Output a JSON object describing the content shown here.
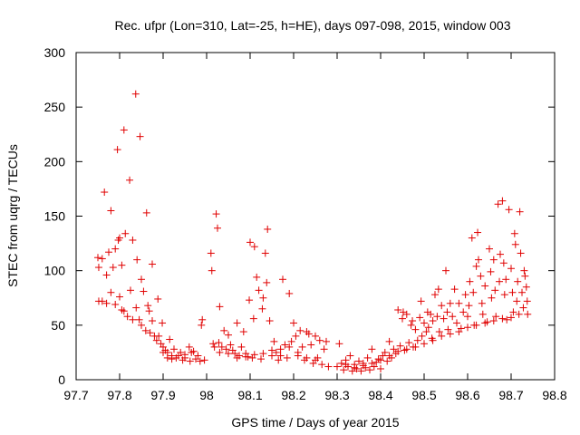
{
  "chart_data": {
    "type": "scatter",
    "title": "Rec. ufpr (Lon=310, Lat=-25, h=HE), days 097-098, 2015, window 003",
    "xlabel": "GPS time / Days of year 2015",
    "ylabel": "STEC from uqrg / TECUs",
    "xlim": [
      97.7,
      98.8
    ],
    "ylim": [
      0,
      300
    ],
    "xticks": [
      97.7,
      97.8,
      97.9,
      98.0,
      98.1,
      98.2,
      98.3,
      98.4,
      98.5,
      98.6,
      98.7,
      98.8
    ],
    "xtick_labels": [
      "97.7",
      "97.8",
      "97.9",
      "98",
      "98.1",
      "98.2",
      "98.3",
      "98.4",
      "98.5",
      "98.6",
      "98.7",
      "98.8"
    ],
    "yticks": [
      0,
      50,
      100,
      150,
      200,
      250,
      300
    ],
    "ytick_labels": [
      "0",
      "50",
      "100",
      "150",
      "200",
      "250",
      "300"
    ],
    "marker": "+",
    "color": "#e00000",
    "series": [
      {
        "name": "STEC",
        "points": [
          [
            97.75,
            112
          ],
          [
            97.752,
            103
          ],
          [
            97.76,
            111
          ],
          [
            97.765,
            172
          ],
          [
            97.77,
            96
          ],
          [
            97.775,
            117
          ],
          [
            97.78,
            155
          ],
          [
            97.785,
            103
          ],
          [
            97.79,
            120
          ],
          [
            97.795,
            211
          ],
          [
            97.797,
            128
          ],
          [
            97.8,
            130
          ],
          [
            97.805,
            105
          ],
          [
            97.81,
            229
          ],
          [
            97.813,
            134
          ],
          [
            97.823,
            183
          ],
          [
            97.83,
            128
          ],
          [
            97.837,
            262
          ],
          [
            97.84,
            110
          ],
          [
            97.847,
            223
          ],
          [
            97.85,
            92
          ],
          [
            97.862,
            153
          ],
          [
            97.875,
            106
          ],
          [
            97.752,
            72
          ],
          [
            97.76,
            72
          ],
          [
            97.77,
            70
          ],
          [
            97.78,
            80
          ],
          [
            97.79,
            69
          ],
          [
            97.8,
            76
          ],
          [
            97.805,
            64
          ],
          [
            97.81,
            63
          ],
          [
            97.818,
            58
          ],
          [
            97.825,
            82
          ],
          [
            97.83,
            55
          ],
          [
            97.838,
            66
          ],
          [
            97.845,
            55
          ],
          [
            97.85,
            50
          ],
          [
            97.855,
            81
          ],
          [
            97.86,
            45
          ],
          [
            97.865,
            68
          ],
          [
            97.868,
            63
          ],
          [
            97.87,
            43
          ],
          [
            97.875,
            54
          ],
          [
            97.88,
            40
          ],
          [
            97.885,
            36
          ],
          [
            97.888,
            74
          ],
          [
            97.89,
            40
          ],
          [
            97.895,
            33
          ],
          [
            97.898,
            52
          ],
          [
            97.9,
            30
          ],
          [
            97.905,
            27
          ],
          [
            97.91,
            25
          ],
          [
            97.915,
            37
          ],
          [
            97.92,
            22
          ],
          [
            97.925,
            28
          ],
          [
            97.93,
            20
          ],
          [
            97.94,
            25
          ],
          [
            97.945,
            18
          ],
          [
            97.95,
            23
          ],
          [
            97.96,
            30
          ],
          [
            97.962,
            17
          ],
          [
            97.97,
            26
          ],
          [
            97.975,
            19
          ],
          [
            97.98,
            22
          ],
          [
            97.985,
            17
          ],
          [
            97.988,
            50
          ],
          [
            97.99,
            55
          ],
          [
            97.995,
            18
          ],
          [
            97.9,
            25
          ],
          [
            97.91,
            20
          ],
          [
            97.92,
            19
          ],
          [
            97.935,
            22
          ],
          [
            97.95,
            20
          ],
          [
            97.965,
            25
          ],
          [
            98.01,
            116
          ],
          [
            98.012,
            100
          ],
          [
            98.015,
            33
          ],
          [
            98.018,
            30
          ],
          [
            98.022,
            152
          ],
          [
            98.025,
            139
          ],
          [
            98.028,
            34
          ],
          [
            98.03,
            67
          ],
          [
            98.035,
            30
          ],
          [
            98.04,
            45
          ],
          [
            98.045,
            28
          ],
          [
            98.05,
            41
          ],
          [
            98.055,
            32
          ],
          [
            98.06,
            27
          ],
          [
            98.065,
            24
          ],
          [
            98.07,
            52
          ],
          [
            98.075,
            22
          ],
          [
            98.08,
            30
          ],
          [
            98.085,
            44
          ],
          [
            98.09,
            24
          ],
          [
            98.095,
            21
          ],
          [
            98.098,
            73
          ],
          [
            98.1,
            126
          ],
          [
            98.105,
            20
          ],
          [
            98.108,
            56
          ],
          [
            98.11,
            122
          ],
          [
            98.115,
            94
          ],
          [
            98.12,
            82
          ],
          [
            98.125,
            19
          ],
          [
            98.128,
            65
          ],
          [
            98.13,
            75
          ],
          [
            98.135,
            116
          ],
          [
            98.138,
            89
          ],
          [
            98.14,
            138
          ],
          [
            98.145,
            54
          ],
          [
            98.15,
            22
          ],
          [
            98.155,
            35
          ],
          [
            98.16,
            25
          ],
          [
            98.165,
            18
          ],
          [
            98.17,
            28
          ],
          [
            98.175,
            92
          ],
          [
            98.18,
            32
          ],
          [
            98.185,
            20
          ],
          [
            98.19,
            79
          ],
          [
            98.195,
            35
          ],
          [
            98.2,
            52
          ],
          [
            98.205,
            40
          ],
          [
            98.21,
            25
          ],
          [
            98.215,
            45
          ],
          [
            98.22,
            30
          ],
          [
            98.225,
            18
          ],
          [
            98.23,
            44
          ],
          [
            98.235,
            42
          ],
          [
            98.24,
            32
          ],
          [
            98.245,
            15
          ],
          [
            98.25,
            40
          ],
          [
            98.255,
            20
          ],
          [
            98.26,
            36
          ],
          [
            98.265,
            14
          ],
          [
            98.27,
            28
          ],
          [
            98.275,
            35
          ],
          [
            98.28,
            12
          ],
          [
            98.03,
            25
          ],
          [
            98.05,
            24
          ],
          [
            98.07,
            20
          ],
          [
            98.09,
            21
          ],
          [
            98.11,
            23
          ],
          [
            98.13,
            24
          ],
          [
            98.15,
            27
          ],
          [
            98.17,
            22
          ],
          [
            98.19,
            30
          ],
          [
            98.21,
            22
          ],
          [
            98.23,
            20
          ],
          [
            98.25,
            18
          ],
          [
            98.3,
            12
          ],
          [
            98.305,
            33
          ],
          [
            98.31,
            15
          ],
          [
            98.315,
            9
          ],
          [
            98.32,
            18
          ],
          [
            98.325,
            12
          ],
          [
            98.33,
            22
          ],
          [
            98.335,
            8
          ],
          [
            98.34,
            14
          ],
          [
            98.345,
            10
          ],
          [
            98.35,
            17
          ],
          [
            98.355,
            8
          ],
          [
            98.36,
            15
          ],
          [
            98.365,
            11
          ],
          [
            98.37,
            20
          ],
          [
            98.375,
            9
          ],
          [
            98.38,
            28
          ],
          [
            98.385,
            12
          ],
          [
            98.39,
            16
          ],
          [
            98.395,
            19
          ],
          [
            98.4,
            10
          ],
          [
            98.405,
            22
          ],
          [
            98.41,
            25
          ],
          [
            98.415,
            17
          ],
          [
            98.42,
            35
          ],
          [
            98.425,
            20
          ],
          [
            98.43,
            28
          ],
          [
            98.435,
            24
          ],
          [
            98.44,
            64
          ],
          [
            98.445,
            31
          ],
          [
            98.45,
            56
          ],
          [
            98.452,
            62
          ],
          [
            98.455,
            27
          ],
          [
            98.46,
            60
          ],
          [
            98.465,
            34
          ],
          [
            98.47,
            50
          ],
          [
            98.473,
            54
          ],
          [
            98.475,
            30
          ],
          [
            98.48,
            46
          ],
          [
            98.485,
            36
          ],
          [
            98.49,
            57
          ],
          [
            98.493,
            72
          ],
          [
            98.495,
            40
          ],
          [
            98.5,
            52
          ],
          [
            98.505,
            44
          ],
          [
            98.508,
            62
          ],
          [
            98.51,
            48
          ],
          [
            98.515,
            60
          ],
          [
            98.518,
            38
          ],
          [
            98.52,
            54
          ],
          [
            98.525,
            78
          ],
          [
            98.53,
            58
          ],
          [
            98.533,
            83
          ],
          [
            98.535,
            44
          ],
          [
            98.54,
            68
          ],
          [
            98.545,
            56
          ],
          [
            98.55,
            100
          ],
          [
            98.553,
            62
          ],
          [
            98.555,
            46
          ],
          [
            98.56,
            70
          ],
          [
            98.565,
            58
          ],
          [
            98.57,
            83
          ],
          [
            98.575,
            52
          ],
          [
            98.58,
            70
          ],
          [
            98.585,
            47
          ],
          [
            98.59,
            62
          ],
          [
            98.595,
            78
          ],
          [
            98.6,
            58
          ],
          [
            98.603,
            68
          ],
          [
            98.605,
            90
          ],
          [
            98.61,
            130
          ],
          [
            98.613,
            80
          ],
          [
            98.615,
            50
          ],
          [
            98.62,
            104
          ],
          [
            98.623,
            135
          ],
          [
            98.625,
            110
          ],
          [
            98.63,
            95
          ],
          [
            98.633,
            70
          ],
          [
            98.635,
            60
          ],
          [
            98.64,
            86
          ],
          [
            98.645,
            53
          ],
          [
            98.65,
            120
          ],
          [
            98.653,
            99
          ],
          [
            98.655,
            75
          ],
          [
            98.66,
            110
          ],
          [
            98.663,
            82
          ],
          [
            98.665,
            58
          ],
          [
            98.67,
            161
          ],
          [
            98.673,
            90
          ],
          [
            98.675,
            115
          ],
          [
            98.68,
            164
          ],
          [
            98.683,
            107
          ],
          [
            98.685,
            78
          ],
          [
            98.688,
            92
          ],
          [
            98.69,
            55
          ],
          [
            98.695,
            156
          ],
          [
            98.7,
            102
          ],
          [
            98.703,
            80
          ],
          [
            98.705,
            62
          ],
          [
            98.708,
            134
          ],
          [
            98.71,
            124
          ],
          [
            98.713,
            72
          ],
          [
            98.715,
            90
          ],
          [
            98.718,
            60
          ],
          [
            98.72,
            154
          ],
          [
            98.722,
            116
          ],
          [
            98.725,
            80
          ],
          [
            98.728,
            66
          ],
          [
            98.73,
            100
          ],
          [
            98.732,
            95
          ],
          [
            98.735,
            85
          ],
          [
            98.737,
            72
          ],
          [
            98.738,
            60
          ],
          [
            98.32,
            14
          ],
          [
            98.34,
            11
          ],
          [
            98.36,
            13
          ],
          [
            98.38,
            15
          ],
          [
            98.4,
            18
          ],
          [
            98.42,
            22
          ],
          [
            98.44,
            26
          ],
          [
            98.46,
            28
          ],
          [
            98.48,
            30
          ],
          [
            98.5,
            33
          ],
          [
            98.52,
            36
          ],
          [
            98.54,
            40
          ],
          [
            98.56,
            42
          ],
          [
            98.58,
            44
          ],
          [
            98.6,
            48
          ],
          [
            98.62,
            50
          ],
          [
            98.64,
            52
          ],
          [
            98.66,
            54
          ],
          [
            98.68,
            56
          ],
          [
            98.7,
            57
          ]
        ]
      }
    ]
  }
}
